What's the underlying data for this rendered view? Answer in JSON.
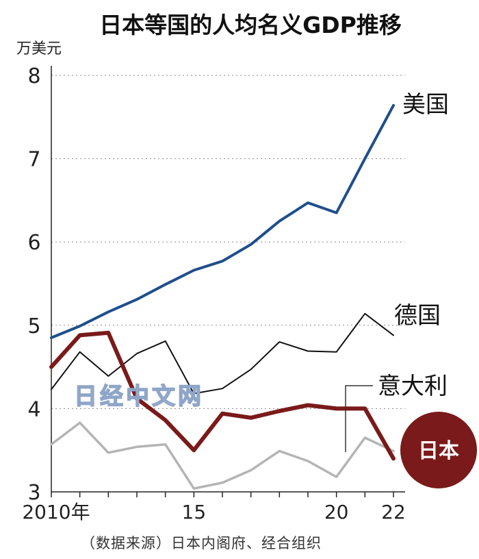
{
  "chart_data": {
    "type": "line",
    "title": "日本等国的人均名义GDP推移",
    "ylabel": "万美元",
    "xlabel": "",
    "x": [
      2010,
      2011,
      2012,
      2013,
      2014,
      2015,
      2016,
      2017,
      2018,
      2019,
      2020,
      2021,
      2022
    ],
    "x_tick_values": [
      2010,
      2015,
      2020,
      2022
    ],
    "x_tick_labels": [
      "2010年",
      "15",
      "20",
      "22"
    ],
    "ylim": [
      3,
      8
    ],
    "y_ticks": [
      3,
      4,
      5,
      6,
      7,
      8
    ],
    "grid": true,
    "legend": "direct labels at line ends",
    "series": [
      {
        "name": "美国",
        "color": "#1f4e8c",
        "width": 4,
        "values": [
          4.85,
          4.99,
          5.16,
          5.31,
          5.49,
          5.66,
          5.77,
          5.97,
          6.25,
          6.47,
          6.35,
          7.0,
          7.64
        ]
      },
      {
        "name": "德国",
        "color": "#111111",
        "width": 2,
        "values": [
          4.23,
          4.68,
          4.39,
          4.66,
          4.81,
          4.18,
          4.24,
          4.47,
          4.8,
          4.69,
          4.68,
          5.14,
          4.88
        ]
      },
      {
        "name": "意大利",
        "color": "#b4b4b4",
        "width": 3.5,
        "values": [
          3.57,
          3.83,
          3.47,
          3.54,
          3.57,
          3.04,
          3.11,
          3.26,
          3.49,
          3.37,
          3.18,
          3.65,
          3.49
        ]
      },
      {
        "name": "日本",
        "color": "#7a1a1a",
        "width": 6,
        "values": [
          4.5,
          4.88,
          4.91,
          4.12,
          3.86,
          3.5,
          3.94,
          3.89,
          3.97,
          4.04,
          4.0,
          4.0,
          3.4
        ]
      }
    ],
    "source": "（数据来源）日本内阁府、经合组织",
    "watermark": "日经中文网"
  }
}
